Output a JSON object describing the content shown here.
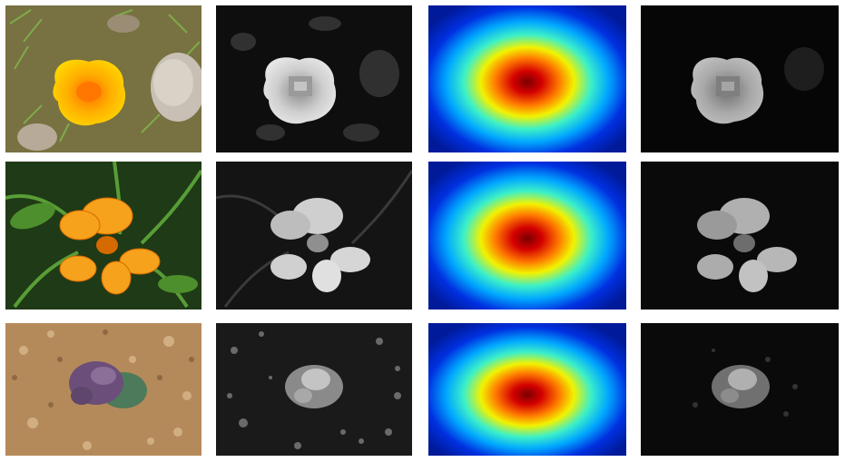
{
  "figure": {
    "rows": [
      {
        "subject": "orange-poppy",
        "panels": [
          "photo",
          "grayscale-saliency",
          "center-bias-heatmap",
          "weighted-saliency"
        ]
      },
      {
        "subject": "orange-nasturtium",
        "panels": [
          "photo",
          "grayscale-saliency",
          "center-bias-heatmap",
          "weighted-saliency"
        ]
      },
      {
        "subject": "purple-flower-on-gravel",
        "panels": [
          "photo",
          "grayscale-saliency",
          "center-bias-heatmap",
          "weighted-saliency"
        ]
      }
    ],
    "colors": {
      "poppy_outer": "#f4b400",
      "poppy_inner": "#ff8a00",
      "nasturtium": "#f39a1a",
      "gravel_flower": "#6b4f7a",
      "heat_center": "#8b0000",
      "heat_edge": "#00008b"
    }
  }
}
